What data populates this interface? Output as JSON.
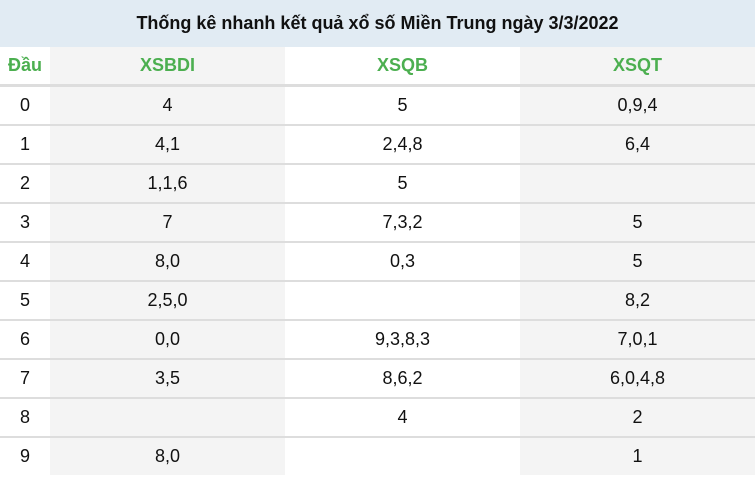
{
  "title": "Thống kê nhanh kết quả xổ số Miền Trung ngày 3/3/2022",
  "columns": [
    "Đầu",
    "XSBDI",
    "XSQB",
    "XSQT"
  ],
  "rows": [
    [
      "0",
      "4",
      "5",
      "0,9,4"
    ],
    [
      "1",
      "4,1",
      "2,4,8",
      "6,4"
    ],
    [
      "2",
      "1,1,6",
      "5",
      ""
    ],
    [
      "3",
      "7",
      "7,3,2",
      "5"
    ],
    [
      "4",
      "8,0",
      "0,3",
      "5"
    ],
    [
      "5",
      "2,5,0",
      "",
      "8,2"
    ],
    [
      "6",
      "0,0",
      "9,3,8,3",
      "7,0,1"
    ],
    [
      "7",
      "3,5",
      "8,6,2",
      "6,0,4,8"
    ],
    [
      "8",
      "",
      "4",
      "2"
    ],
    [
      "9",
      "8,0",
      "",
      "1"
    ]
  ],
  "colors": {
    "header_text": "#4caf50",
    "title_bg": "#e1ebf3",
    "alt_col_bg": "#f4f4f4"
  }
}
